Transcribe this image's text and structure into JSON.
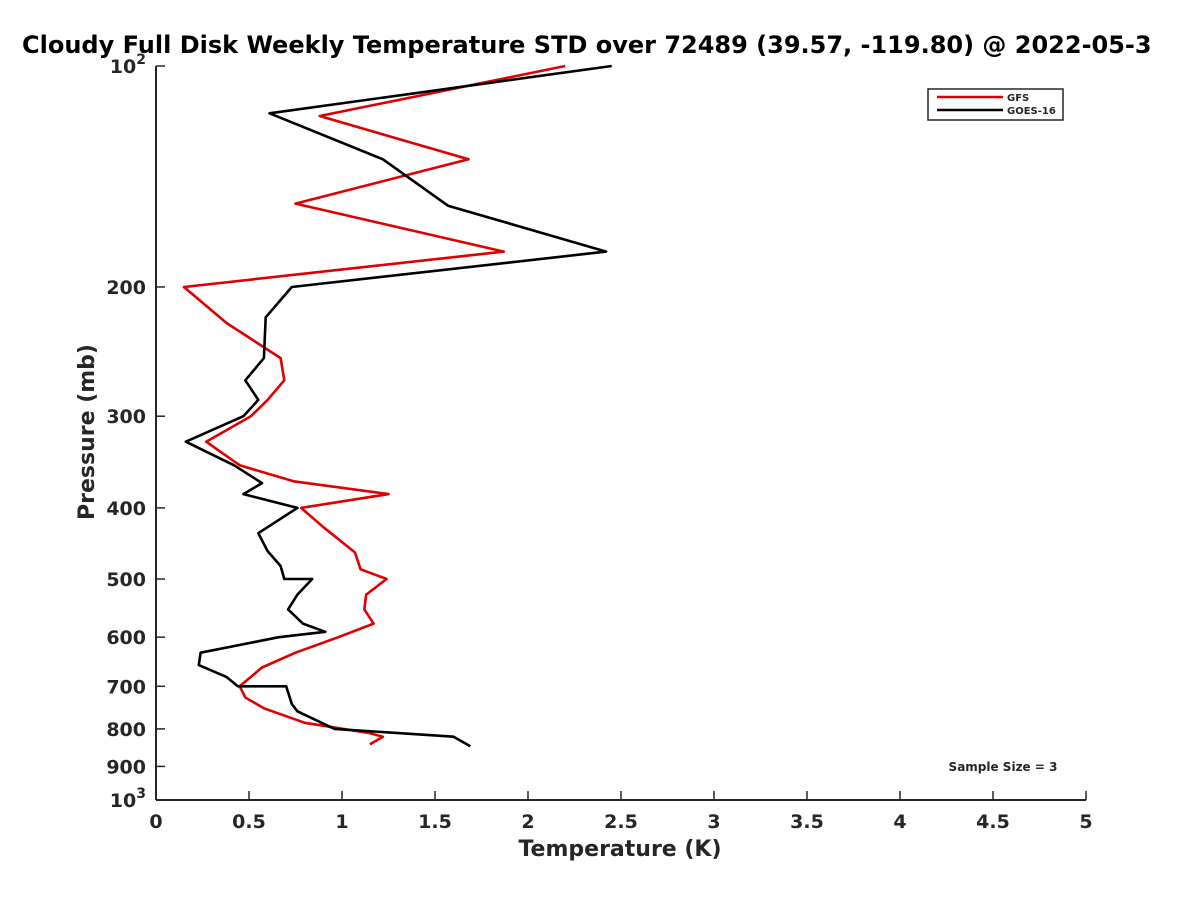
{
  "chart_data": {
    "type": "line",
    "title": "Cloudy Full Disk Weekly Temperature STD over 72489 (39.57, -119.80) @ 2022-05-3",
    "xlabel": "Temperature (K)",
    "ylabel": "Pressure (mb)",
    "xlim": [
      0,
      5
    ],
    "ylim": [
      100,
      1000
    ],
    "yscale": "log",
    "y_reversed": true,
    "xticks": [
      0,
      0.5,
      1,
      1.5,
      2,
      2.5,
      3,
      3.5,
      4,
      4.5,
      5
    ],
    "xtick_labels": [
      "0",
      "0.5",
      "1",
      "1.5",
      "2",
      "2.5",
      "3",
      "3.5",
      "4",
      "4.5",
      "5"
    ],
    "yticks": [
      100,
      200,
      300,
      400,
      500,
      600,
      700,
      800,
      900,
      1000
    ],
    "ytick_labels": [
      "10^2",
      "200",
      "300",
      "400",
      "500",
      "600",
      "700",
      "800",
      "900",
      "10^3"
    ],
    "grid": false,
    "legend_position": "top-right",
    "annotation": "Sample Size = 3",
    "series": [
      {
        "name": "GFS",
        "color": "#e00000",
        "points": [
          {
            "x": 2.2,
            "y": 100
          },
          {
            "x": 0.88,
            "y": 117
          },
          {
            "x": 1.68,
            "y": 134
          },
          {
            "x": 0.75,
            "y": 154
          },
          {
            "x": 1.87,
            "y": 179
          },
          {
            "x": 0.15,
            "y": 200
          },
          {
            "x": 0.38,
            "y": 224
          },
          {
            "x": 0.67,
            "y": 250
          },
          {
            "x": 0.69,
            "y": 268
          },
          {
            "x": 0.6,
            "y": 285
          },
          {
            "x": 0.51,
            "y": 300
          },
          {
            "x": 0.27,
            "y": 325
          },
          {
            "x": 0.45,
            "y": 350
          },
          {
            "x": 0.74,
            "y": 368
          },
          {
            "x": 1.25,
            "y": 383
          },
          {
            "x": 0.78,
            "y": 400
          },
          {
            "x": 0.9,
            "y": 425
          },
          {
            "x": 1.07,
            "y": 460
          },
          {
            "x": 1.1,
            "y": 485
          },
          {
            "x": 1.24,
            "y": 500
          },
          {
            "x": 1.13,
            "y": 525
          },
          {
            "x": 1.12,
            "y": 550
          },
          {
            "x": 1.17,
            "y": 575
          },
          {
            "x": 0.98,
            "y": 600
          },
          {
            "x": 0.75,
            "y": 630
          },
          {
            "x": 0.57,
            "y": 660
          },
          {
            "x": 0.45,
            "y": 700
          },
          {
            "x": 0.48,
            "y": 725
          },
          {
            "x": 0.58,
            "y": 750
          },
          {
            "x": 0.8,
            "y": 785
          },
          {
            "x": 1.14,
            "y": 810
          },
          {
            "x": 1.22,
            "y": 820
          },
          {
            "x": 1.15,
            "y": 840
          }
        ]
      },
      {
        "name": "GOES-16",
        "color": "#000000",
        "points": [
          {
            "x": 2.45,
            "y": 100
          },
          {
            "x": 0.61,
            "y": 116
          },
          {
            "x": 1.22,
            "y": 134
          },
          {
            "x": 1.57,
            "y": 155
          },
          {
            "x": 2.42,
            "y": 179
          },
          {
            "x": 0.73,
            "y": 200
          },
          {
            "x": 0.59,
            "y": 220
          },
          {
            "x": 0.58,
            "y": 250
          },
          {
            "x": 0.48,
            "y": 268
          },
          {
            "x": 0.55,
            "y": 285
          },
          {
            "x": 0.47,
            "y": 300
          },
          {
            "x": 0.16,
            "y": 325
          },
          {
            "x": 0.42,
            "y": 350
          },
          {
            "x": 0.57,
            "y": 370
          },
          {
            "x": 0.47,
            "y": 383
          },
          {
            "x": 0.76,
            "y": 400
          },
          {
            "x": 0.55,
            "y": 433
          },
          {
            "x": 0.6,
            "y": 458
          },
          {
            "x": 0.67,
            "y": 480
          },
          {
            "x": 0.69,
            "y": 500
          },
          {
            "x": 0.84,
            "y": 500
          },
          {
            "x": 0.76,
            "y": 525
          },
          {
            "x": 0.71,
            "y": 550
          },
          {
            "x": 0.79,
            "y": 575
          },
          {
            "x": 0.91,
            "y": 590
          },
          {
            "x": 0.66,
            "y": 600
          },
          {
            "x": 0.24,
            "y": 630
          },
          {
            "x": 0.23,
            "y": 655
          },
          {
            "x": 0.38,
            "y": 680
          },
          {
            "x": 0.44,
            "y": 700
          },
          {
            "x": 0.7,
            "y": 700
          },
          {
            "x": 0.73,
            "y": 740
          },
          {
            "x": 0.76,
            "y": 757
          },
          {
            "x": 0.96,
            "y": 800
          },
          {
            "x": 1.6,
            "y": 820
          },
          {
            "x": 1.69,
            "y": 845
          }
        ]
      }
    ]
  }
}
